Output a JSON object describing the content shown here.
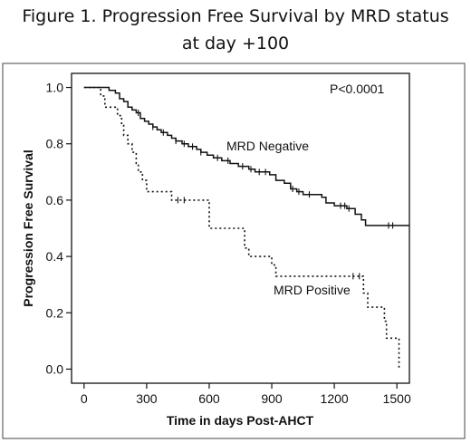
{
  "figure": {
    "title_line1": "Figure 1. Progression Free Survival by MRD status",
    "title_line2": "at day +100"
  },
  "chart_data": {
    "type": "line",
    "step": true,
    "xlabel": "Time in days Post-AHCT",
    "ylabel": "Progression Free Survival",
    "xlim": [
      -60,
      1560
    ],
    "ylim": [
      -0.05,
      1.05
    ],
    "xticks": [
      0,
      300,
      600,
      900,
      1200,
      1500
    ],
    "yticks": [
      0.0,
      0.2,
      0.4,
      0.6,
      0.8,
      1.0
    ],
    "xtick_labels": [
      "0",
      "300",
      "600",
      "900",
      "1200",
      "1500"
    ],
    "ytick_labels": [
      "0.0",
      "0.2",
      "0.4",
      "0.6",
      "0.8",
      "1.0"
    ],
    "grid": false,
    "annotations": {
      "pvalue": "P<0.0001"
    },
    "series": [
      {
        "name": "MRD Negative",
        "style": "solid",
        "color": "#111111",
        "points": [
          [
            0,
            1.0
          ],
          [
            90,
            1.0
          ],
          [
            120,
            0.99
          ],
          [
            150,
            0.98
          ],
          [
            170,
            0.96
          ],
          [
            190,
            0.95
          ],
          [
            210,
            0.93
          ],
          [
            230,
            0.92
          ],
          [
            250,
            0.91
          ],
          [
            270,
            0.89
          ],
          [
            290,
            0.88
          ],
          [
            310,
            0.87
          ],
          [
            330,
            0.86
          ],
          [
            350,
            0.85
          ],
          [
            370,
            0.84
          ],
          [
            400,
            0.83
          ],
          [
            420,
            0.82
          ],
          [
            440,
            0.81
          ],
          [
            470,
            0.8
          ],
          [
            500,
            0.79
          ],
          [
            540,
            0.78
          ],
          [
            560,
            0.77
          ],
          [
            590,
            0.76
          ],
          [
            620,
            0.75
          ],
          [
            660,
            0.74
          ],
          [
            700,
            0.73
          ],
          [
            740,
            0.72
          ],
          [
            790,
            0.71
          ],
          [
            820,
            0.7
          ],
          [
            860,
            0.7
          ],
          [
            890,
            0.69
          ],
          [
            920,
            0.67
          ],
          [
            960,
            0.66
          ],
          [
            990,
            0.64
          ],
          [
            1020,
            0.63
          ],
          [
            1050,
            0.62
          ],
          [
            1140,
            0.61
          ],
          [
            1160,
            0.59
          ],
          [
            1200,
            0.58
          ],
          [
            1260,
            0.57
          ],
          [
            1300,
            0.55
          ],
          [
            1330,
            0.53
          ],
          [
            1350,
            0.51
          ],
          [
            1560,
            0.51
          ]
        ],
        "censor_x": [
          260,
          330,
          380,
          440,
          480,
          520,
          560,
          640,
          690,
          760,
          800,
          840,
          870,
          1000,
          1030,
          1080,
          1230,
          1250,
          1270,
          1460,
          1480
        ]
      },
      {
        "name": "MRD Positive",
        "style": "dotted",
        "color": "#111111",
        "points": [
          [
            0,
            1.0
          ],
          [
            70,
            1.0
          ],
          [
            80,
            0.97
          ],
          [
            100,
            0.93
          ],
          [
            160,
            0.9
          ],
          [
            180,
            0.87
          ],
          [
            190,
            0.83
          ],
          [
            210,
            0.8
          ],
          [
            230,
            0.77
          ],
          [
            250,
            0.73
          ],
          [
            260,
            0.7
          ],
          [
            280,
            0.67
          ],
          [
            300,
            0.63
          ],
          [
            390,
            0.63
          ],
          [
            420,
            0.6
          ],
          [
            570,
            0.6
          ],
          [
            600,
            0.5
          ],
          [
            760,
            0.5
          ],
          [
            770,
            0.43
          ],
          [
            790,
            0.4
          ],
          [
            880,
            0.4
          ],
          [
            900,
            0.37
          ],
          [
            920,
            0.33
          ],
          [
            1320,
            0.33
          ],
          [
            1340,
            0.27
          ],
          [
            1360,
            0.22
          ],
          [
            1430,
            0.22
          ],
          [
            1440,
            0.17
          ],
          [
            1450,
            0.11
          ],
          [
            1500,
            0.11
          ],
          [
            1510,
            0.0
          ]
        ],
        "censor_x": [
          450,
          480,
          1290,
          1320
        ]
      }
    ]
  }
}
